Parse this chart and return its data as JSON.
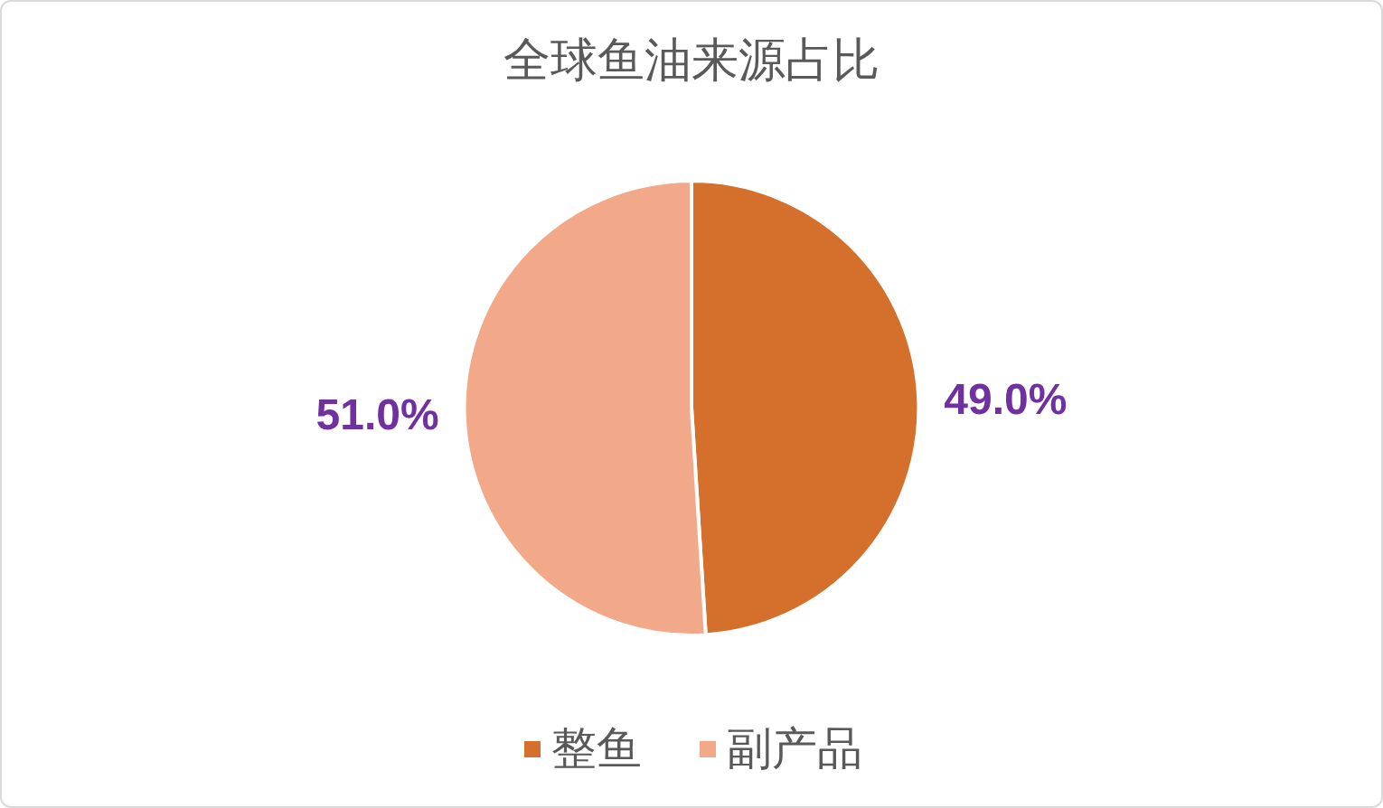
{
  "chart_data": {
    "type": "pie",
    "title": "全球鱼油来源占比",
    "categories": [
      "整鱼",
      "副产品"
    ],
    "values": [
      49.0,
      51.0
    ],
    "colors": [
      "#d4702c",
      "#f1a98a"
    ],
    "value_labels": [
      "49.0%",
      "51.0%"
    ],
    "legend": "bottom"
  }
}
